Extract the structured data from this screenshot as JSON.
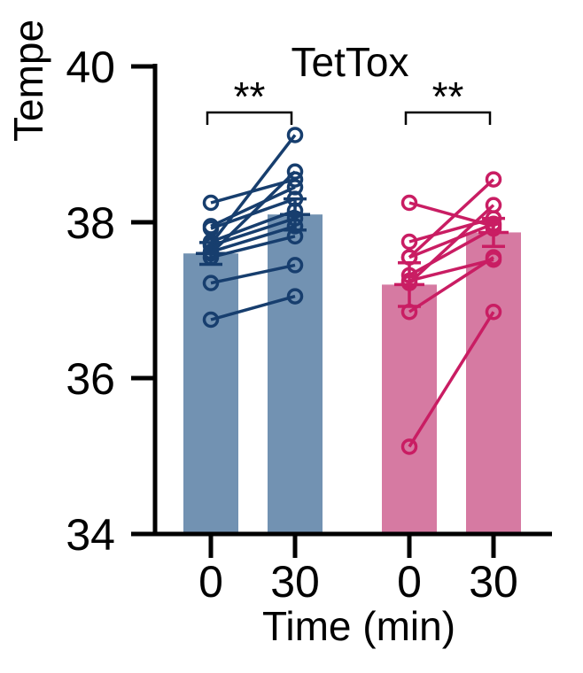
{
  "chart_data": {
    "type": "bar",
    "title": "TetTox",
    "ylabel": "Tempe",
    "xlabel": "Time (min)",
    "ylim": [
      34,
      40
    ],
    "yticks": [
      "34",
      "36",
      "38",
      "40"
    ],
    "categories": [
      "0",
      "30",
      "0",
      "30"
    ],
    "colors": {
      "blue_bar": "#7292b2",
      "blue_line": "#173e6e",
      "pink_bar": "#d67aa2",
      "pink_line": "#c91d63"
    },
    "groups": [
      {
        "bar_color": "#7292b2",
        "line_color": "#173e6e",
        "means": [
          37.6,
          38.1
        ],
        "sem": [
          0.14,
          0.2
        ],
        "significance": "**",
        "pairs": [
          [
            36.75,
            37.05
          ],
          [
            37.22,
            37.45
          ],
          [
            37.55,
            37.82
          ],
          [
            37.62,
            37.95
          ],
          [
            37.7,
            38.05
          ],
          [
            37.75,
            38.15
          ],
          [
            37.92,
            38.3
          ],
          [
            37.95,
            38.45
          ],
          [
            38.25,
            38.55
          ],
          [
            37.6,
            38.65
          ],
          [
            37.72,
            39.12
          ]
        ]
      },
      {
        "bar_color": "#d67aa2",
        "line_color": "#c91d63",
        "means": [
          37.2,
          37.87
        ],
        "sem": [
          0.28,
          0.18
        ],
        "significance": "**",
        "pairs": [
          [
            35.12,
            36.85
          ],
          [
            36.85,
            37.55
          ],
          [
            37.25,
            37.52
          ],
          [
            37.32,
            37.92
          ],
          [
            37.55,
            37.98
          ],
          [
            37.75,
            38.05
          ],
          [
            38.25,
            37.95
          ],
          [
            37.22,
            38.22
          ],
          [
            37.55,
            38.55
          ]
        ]
      }
    ]
  }
}
